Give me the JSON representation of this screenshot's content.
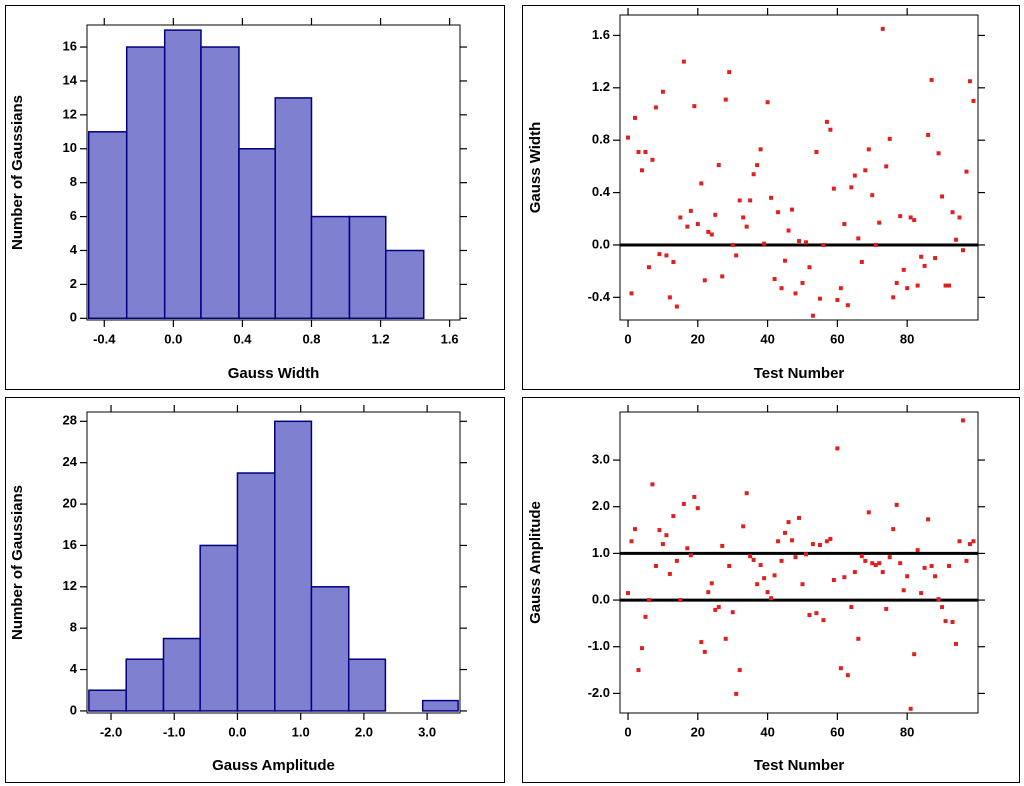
{
  "chart_data": [
    {
      "type": "histogram",
      "xlabel": "Gauss Width",
      "ylabel": "Number of Gaussians",
      "bins": [
        -0.49,
        -0.27,
        -0.05,
        0.16,
        0.38,
        0.59,
        0.8,
        1.02,
        1.23,
        1.45,
        1.65
      ],
      "values": [
        11,
        16,
        17,
        16,
        10,
        13,
        6,
        6,
        4,
        0
      ],
      "color": "#8080d0",
      "edgecolor": "#000080",
      "xlim": [
        -0.5,
        1.66
      ],
      "ylim": [
        -0.1,
        17.3
      ],
      "xticks": [
        -0.4,
        {
          "value": 0,
          "label": "0.0"
        },
        0.4,
        0.8,
        1.2,
        1.6
      ],
      "yticks": [
        0,
        2,
        4,
        6,
        8,
        10,
        12,
        14,
        16
      ]
    },
    {
      "type": "scatter",
      "xlabel": "Test Number",
      "ylabel": "Gauss Width",
      "color": "#e02020",
      "x": [
        0,
        1,
        2,
        3,
        4,
        5,
        6,
        7,
        8,
        9,
        10,
        11,
        12,
        13,
        14,
        15,
        16,
        17,
        18,
        19,
        20,
        21,
        22,
        23,
        24,
        25,
        26,
        27,
        28,
        29,
        30,
        31,
        32,
        33,
        34,
        35,
        36,
        37,
        38,
        39,
        40,
        41,
        42,
        43,
        44,
        45,
        46,
        47,
        48,
        49,
        50,
        51,
        52,
        53,
        54,
        55,
        56,
        57,
        58,
        59,
        60,
        61,
        62,
        63,
        64,
        65,
        66,
        67,
        68,
        69,
        70,
        71,
        72,
        73,
        74,
        75,
        76,
        77,
        78,
        79,
        80,
        81,
        82,
        83,
        84,
        85,
        86,
        87,
        88,
        89,
        90,
        91,
        92,
        93,
        94,
        95,
        96,
        97,
        98,
        99
      ],
      "values": [
        0.82,
        -0.37,
        0.97,
        0.71,
        0.57,
        0.71,
        -0.17,
        0.65,
        1.05,
        -0.07,
        1.17,
        -0.08,
        -0.4,
        -0.13,
        -0.47,
        0.21,
        1.4,
        0.14,
        0.26,
        1.06,
        0.16,
        0.47,
        -0.27,
        0.1,
        0.08,
        0.23,
        0.61,
        -0.24,
        1.11,
        1.32,
        0.0,
        -0.08,
        0.34,
        0.21,
        0.14,
        0.34,
        0.54,
        0.61,
        0.73,
        0.01,
        1.09,
        0.36,
        -0.26,
        0.25,
        -0.33,
        -0.12,
        0.11,
        0.27,
        -0.37,
        0.03,
        -0.29,
        0.02,
        -0.17,
        -0.54,
        0.71,
        -0.41,
        0.0,
        0.94,
        0.88,
        0.43,
        -0.42,
        -0.33,
        0.16,
        -0.46,
        0.44,
        0.53,
        0.05,
        -0.13,
        0.57,
        0.73,
        0.38,
        0.0,
        0.17,
        1.65,
        0.6,
        0.81,
        -0.4,
        -0.29,
        0.22,
        -0.19,
        -0.33,
        0.21,
        0.19,
        -0.31,
        -0.09,
        -0.16,
        0.84,
        1.26,
        -0.1,
        0.7,
        0.37,
        -0.31,
        -0.31,
        0.25,
        0.04,
        0.21,
        -0.04,
        0.56,
        1.25,
        1.1
      ],
      "hlines": [
        0
      ],
      "xlim": [
        -2.3,
        100.3
      ],
      "ylim": [
        -0.573,
        1.756
      ],
      "xticks": [
        0,
        20,
        40,
        60,
        80
      ],
      "yticks": [
        -0.4,
        {
          "value": 0,
          "label": "0.0"
        },
        0.4,
        0.8,
        1.2,
        1.6
      ]
    },
    {
      "type": "histogram",
      "xlabel": "Gauss Amplitude",
      "ylabel": "Number of Gaussians",
      "bins": [
        -2.35,
        -1.76,
        -1.17,
        -0.59,
        0.0,
        0.59,
        1.17,
        1.76,
        2.34,
        2.93,
        3.49
      ],
      "values": [
        2,
        5,
        7,
        16,
        23,
        28,
        12,
        5,
        0,
        1
      ],
      "color": "#8080d0",
      "edgecolor": "#000080",
      "xlim": [
        -2.38,
        3.52
      ],
      "ylim": [
        -0.2,
        28.9
      ],
      "xticks": [
        {
          "value": -2,
          "label": "-2.0"
        },
        {
          "value": -1,
          "label": "-1.0"
        },
        {
          "value": 0,
          "label": "0.0"
        },
        {
          "value": 1,
          "label": "1.0"
        },
        {
          "value": 2,
          "label": "2.0"
        },
        {
          "value": 3,
          "label": "3.0"
        }
      ],
      "yticks": [
        0,
        4,
        8,
        12,
        16,
        20,
        24,
        28
      ]
    },
    {
      "type": "scatter",
      "xlabel": "Test Number",
      "ylabel": "Gauss Amplitude",
      "color": "#e02020",
      "x": [
        0,
        1,
        2,
        3,
        4,
        5,
        6,
        7,
        8,
        9,
        10,
        11,
        12,
        13,
        14,
        15,
        16,
        17,
        18,
        19,
        20,
        21,
        22,
        23,
        24,
        25,
        26,
        27,
        28,
        29,
        30,
        31,
        32,
        33,
        34,
        35,
        36,
        37,
        38,
        39,
        40,
        41,
        42,
        43,
        44,
        45,
        46,
        47,
        48,
        49,
        50,
        51,
        52,
        53,
        54,
        55,
        56,
        57,
        58,
        59,
        60,
        61,
        62,
        63,
        64,
        65,
        66,
        67,
        68,
        69,
        70,
        71,
        72,
        73,
        74,
        75,
        76,
        77,
        78,
        79,
        80,
        81,
        82,
        83,
        84,
        85,
        86,
        87,
        88,
        89,
        90,
        91,
        92,
        93,
        94,
        95,
        96,
        97,
        98,
        99
      ],
      "values": [
        0.15,
        1.26,
        1.52,
        -1.5,
        -1.03,
        -0.36,
        0.0,
        2.48,
        0.73,
        1.5,
        1.2,
        1.39,
        0.56,
        1.8,
        0.84,
        0.0,
        2.06,
        1.11,
        0.96,
        2.21,
        1.97,
        -0.9,
        -1.11,
        0.17,
        0.36,
        -0.21,
        -0.15,
        1.16,
        -0.83,
        0.73,
        -0.26,
        -2.01,
        -1.5,
        1.58,
        2.29,
        0.94,
        0.86,
        0.34,
        0.75,
        0.47,
        0.17,
        0.04,
        0.53,
        1.26,
        0.84,
        1.44,
        1.67,
        1.28,
        0.92,
        1.76,
        0.34,
        0.98,
        -0.32,
        1.2,
        -0.28,
        1.18,
        -0.43,
        1.26,
        1.31,
        0.43,
        3.25,
        -1.46,
        0.49,
        -1.61,
        -0.15,
        0.6,
        -0.83,
        0.94,
        0.84,
        1.88,
        0.79,
        0.75,
        0.79,
        0.6,
        -0.19,
        0.92,
        1.52,
        2.04,
        0.79,
        0.21,
        0.51,
        -2.33,
        -1.16,
        1.07,
        0.15,
        0.69,
        1.73,
        0.73,
        0.51,
        0.02,
        -0.15,
        -0.45,
        0.73,
        -0.47,
        -0.94,
        1.26,
        3.85,
        0.84,
        1.2,
        1.26
      ],
      "hlines": [
        0,
        1
      ],
      "xlim": [
        -2.3,
        100.3
      ],
      "ylim": [
        -2.42,
        4.03
      ],
      "xticks": [
        0,
        20,
        40,
        60,
        80
      ],
      "yticks": [
        {
          "value": -2,
          "label": "-2.0"
        },
        {
          "value": -1,
          "label": "-1.0"
        },
        {
          "value": 0,
          "label": "0.0"
        },
        {
          "value": 1,
          "label": "1.0"
        },
        {
          "value": 2,
          "label": "2.0"
        },
        {
          "value": 3,
          "label": "3.0"
        }
      ]
    }
  ]
}
